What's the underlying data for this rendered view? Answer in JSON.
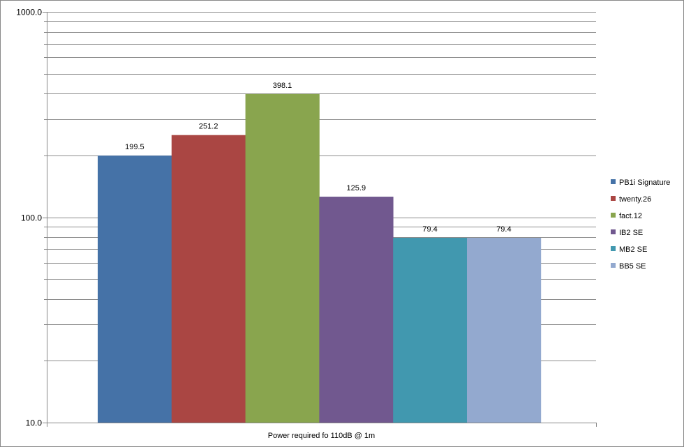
{
  "chart_data": {
    "type": "bar",
    "title": "",
    "xlabel": "Power required fo 110dB @ 1m",
    "ylabel": "",
    "y_scale": "log",
    "ylim": [
      10,
      1000
    ],
    "y_tick_labels": [
      "10.0",
      "100.0",
      "1000.0"
    ],
    "y_tick_values": [
      10,
      100,
      1000
    ],
    "grid": true,
    "legend_position": "right",
    "categories": [
      "Power required fo 110dB @ 1m"
    ],
    "series": [
      {
        "name": "PB1i Signature",
        "values": [
          199.5
        ],
        "label": "199.5",
        "color": "#4572A7"
      },
      {
        "name": "twenty.26",
        "values": [
          251.2
        ],
        "label": "251.2",
        "color": "#AA4643"
      },
      {
        "name": "fact.12",
        "values": [
          398.1
        ],
        "label": "398.1",
        "color": "#89A54E"
      },
      {
        "name": "IB2 SE",
        "values": [
          125.9
        ],
        "label": "125.9",
        "color": "#71588F"
      },
      {
        "name": "MB2 SE",
        "values": [
          79.4
        ],
        "label": "79.4",
        "color": "#4198AF"
      },
      {
        "name": "BB5 SE",
        "values": [
          79.4
        ],
        "label": "79.4",
        "color": "#93A9CF"
      }
    ]
  }
}
